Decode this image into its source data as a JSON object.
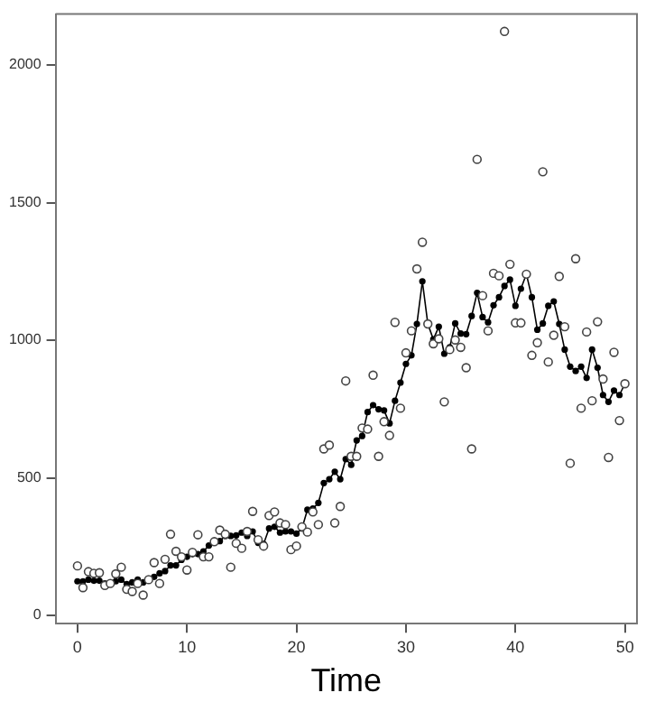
{
  "chart_data": {
    "type": "scatter",
    "xlabel": "Time",
    "x": [
      0,
      0.5,
      1,
      1.5,
      2,
      2.5,
      3,
      3.5,
      4,
      4.5,
      5,
      5.5,
      6,
      6.5,
      7,
      7.5,
      8,
      8.5,
      9,
      9.5,
      10,
      10.5,
      11,
      11.5,
      12,
      12.5,
      13,
      13.5,
      14,
      14.5,
      15,
      15.5,
      16,
      16.5,
      17,
      17.5,
      18,
      18.5,
      19,
      19.5,
      20,
      20.5,
      21,
      21.5,
      22,
      22.5,
      23,
      23.5,
      24,
      24.5,
      25,
      25.5,
      26,
      26.5,
      27,
      27.5,
      28,
      28.5,
      29,
      29.5,
      30,
      30.5,
      31,
      31.5,
      32,
      32.5,
      33,
      33.5,
      34,
      34.5,
      35,
      35.5,
      36,
      36.5,
      37,
      37.5,
      38,
      38.5,
      39,
      39.5,
      40,
      40.5,
      41,
      41.5,
      42,
      42.5,
      43,
      43.5,
      44,
      44.5,
      45,
      45.5,
      46,
      46.5,
      47,
      47.5,
      48,
      48.5,
      49,
      49.5,
      50
    ],
    "series": [
      {
        "type": "scatter",
        "color": "#444444",
        "marker": "circle",
        "values": [
          180,
          101,
          159,
          153,
          155,
          109,
          116,
          151,
          175,
          95,
          87,
          116,
          74,
          130,
          192,
          116,
          204,
          295,
          233,
          213,
          165,
          229,
          293,
          213,
          213,
          268,
          310,
          295,
          175,
          262,
          244,
          305,
          378,
          275,
          252,
          363,
          376,
          336,
          330,
          239,
          252,
          322,
          303,
          376,
          330,
          605,
          619,
          336,
          396,
          852,
          578,
          578,
          681,
          677,
          873,
          578,
          704,
          654,
          1065,
          753,
          954,
          1034,
          1259,
          1356,
          1059,
          987,
          1005,
          776,
          966,
          1001,
          974,
          900,
          605,
          1657,
          1162,
          1034,
          1243,
          1234,
          2122,
          1276,
          1063,
          1063,
          1240,
          945,
          991,
          1612,
          921,
          1018,
          1232,
          1049,
          553,
          1296,
          753,
          1030,
          780,
          1067,
          859,
          574,
          956,
          708,
          842
        ]
      },
      {
        "type": "line",
        "color": "#000000",
        "marker": "circle",
        "line_style": "solid",
        "values": [
          124,
          124,
          130,
          126,
          126,
          116,
          116,
          124,
          130,
          114,
          120,
          130,
          120,
          130,
          140,
          153,
          161,
          182,
          182,
          202,
          213,
          223,
          223,
          233,
          254,
          268,
          270,
          289,
          289,
          291,
          301,
          289,
          305,
          264,
          260,
          316,
          322,
          301,
          305,
          305,
          297,
          316,
          384,
          388,
          409,
          481,
          495,
          522,
          495,
          568,
          547,
          636,
          652,
          739,
          764,
          749,
          745,
          698,
          780,
          846,
          914,
          945,
          1059,
          1214,
          1059,
          1003,
          1049,
          951,
          974,
          1061,
          1024,
          1022,
          1088,
          1172,
          1084,
          1065,
          1127,
          1156,
          1197,
          1220,
          1125,
          1187,
          1240,
          1156,
          1038,
          1061,
          1125,
          1141,
          1059,
          966,
          904,
          888,
          904,
          863,
          966,
          900,
          801,
          776,
          817,
          801,
          842
        ]
      }
    ],
    "xlim": [
      -2,
      51.1
    ],
    "xticks": [
      0,
      10,
      20,
      30,
      40,
      50
    ],
    "ylim": [
      -30,
      2185
    ],
    "yticks": [
      0,
      500,
      1000,
      1500,
      2000
    ],
    "grid": false,
    "legend": false
  }
}
